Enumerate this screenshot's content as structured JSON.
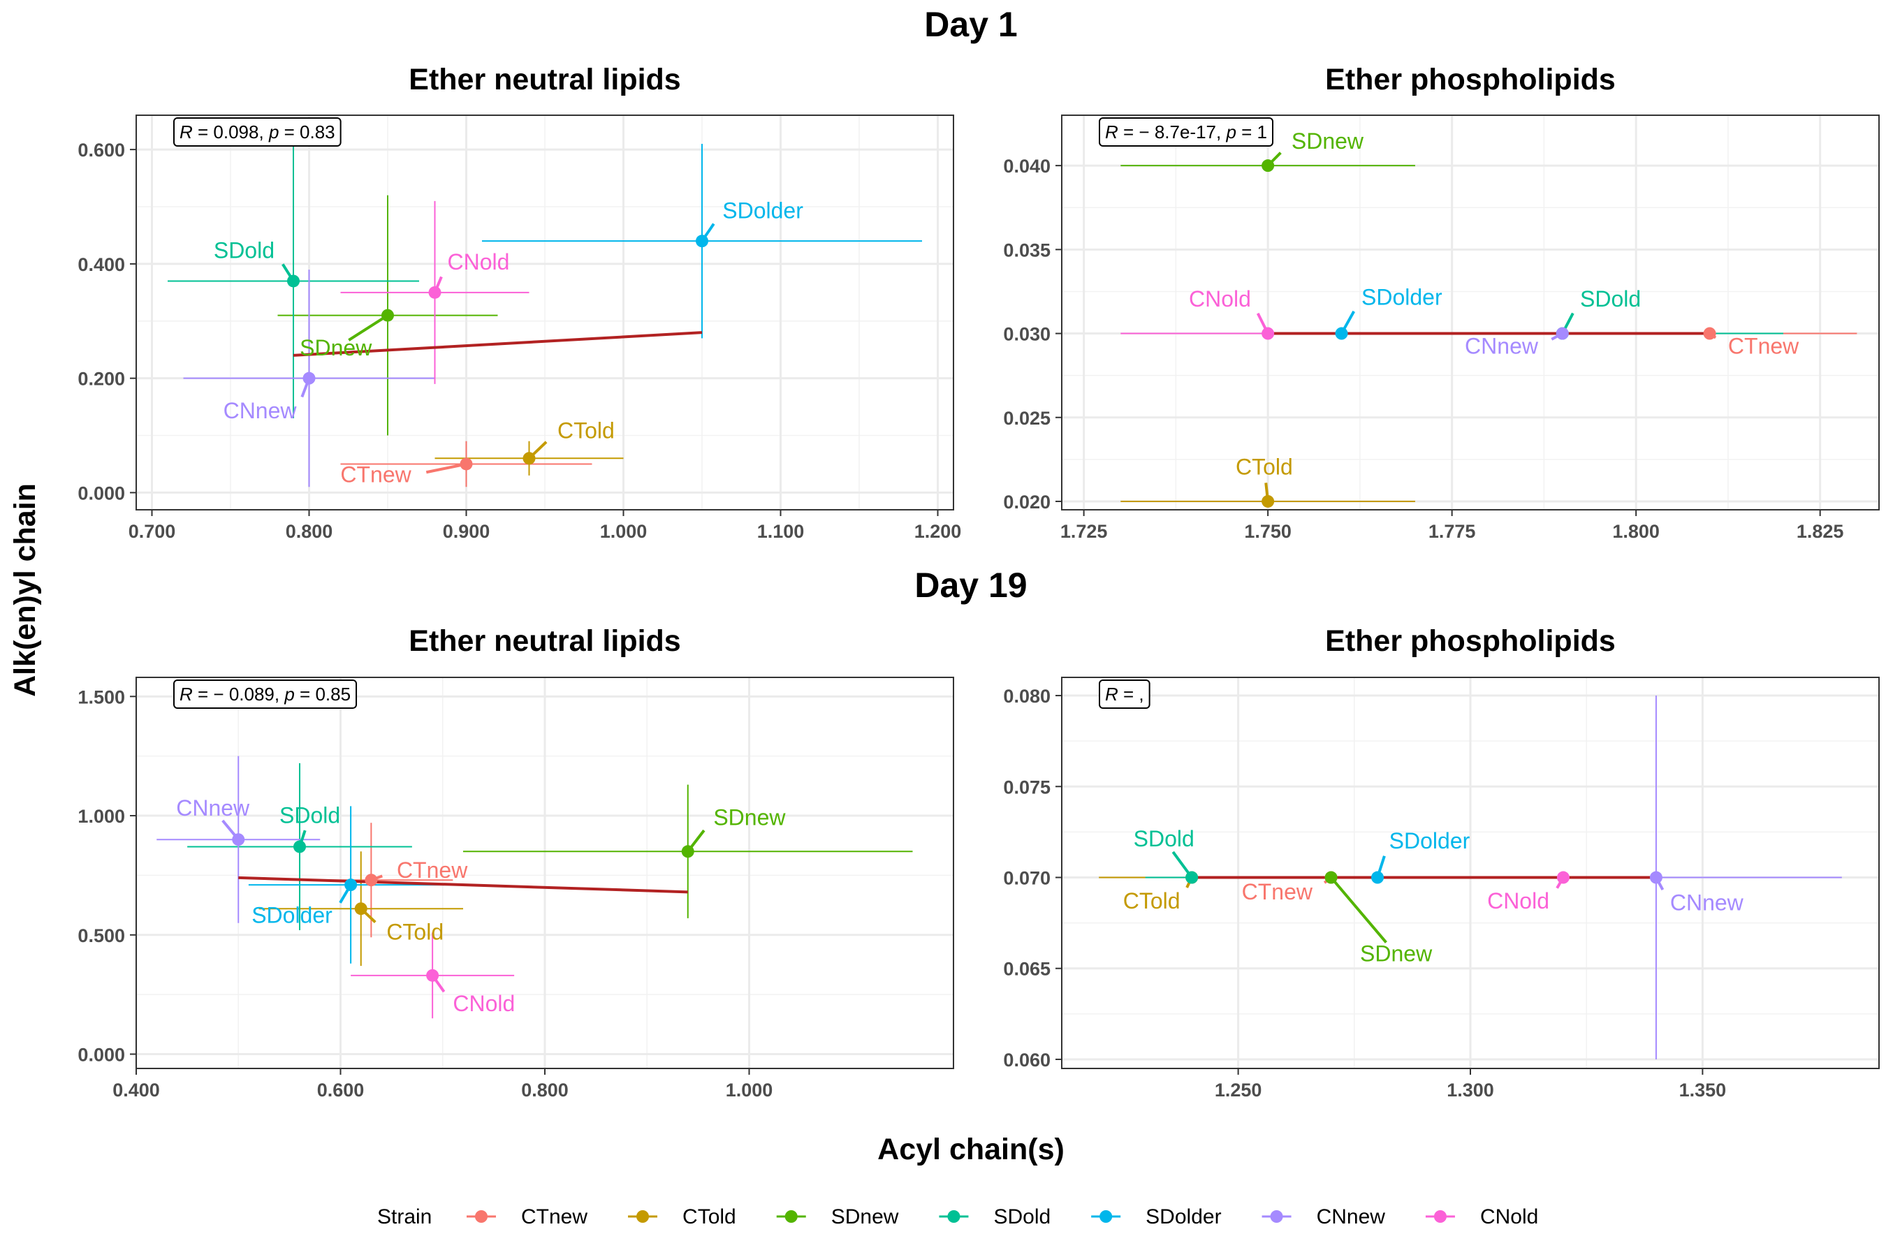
{
  "figure": {
    "x_axis_label": "Acyl chain(s)",
    "y_axis_label": "Alk(en)yl chain"
  },
  "legend": {
    "title": "Strain",
    "placement": "bottom",
    "items": [
      {
        "label": "CTnew",
        "color": "#F8766D"
      },
      {
        "label": "CTold",
        "color": "#C49A00"
      },
      {
        "label": "SDnew",
        "color": "#53B400"
      },
      {
        "label": "SDold",
        "color": "#00C094"
      },
      {
        "label": "SDolder",
        "color": "#00B6EB"
      },
      {
        "label": "CNnew",
        "color": "#A58AFF"
      },
      {
        "label": "CNold",
        "color": "#FB61D7"
      }
    ]
  },
  "colors": {
    "regression_line": "#B22222",
    "grid": "#EBEBEB",
    "panel_border": "#333333"
  },
  "chart_data": [
    {
      "type": "scatter",
      "day": "Day 1",
      "title": "Ether neutral lipids",
      "annotation": {
        "r_label": "R",
        "r_value": " = 0.098, ",
        "p_label": "p",
        "p_value": " = 0.83"
      },
      "xlim": [
        0.69,
        1.21
      ],
      "ylim": [
        -0.03,
        0.66
      ],
      "x_ticks": [
        0.7,
        0.8,
        0.9,
        1.0,
        1.1,
        1.2
      ],
      "x_tick_labels": [
        "0.700",
        "0.800",
        "0.900",
        "1.000",
        "1.100",
        "1.200"
      ],
      "y_ticks": [
        0.0,
        0.2,
        0.4,
        0.6
      ],
      "y_tick_labels": [
        "0.000",
        "0.200",
        "0.400",
        "0.600"
      ],
      "grid": true,
      "regression": {
        "x": [
          0.79,
          1.05
        ],
        "y": [
          0.24,
          0.28
        ]
      },
      "points": [
        {
          "strain": "CTnew",
          "x": 0.9,
          "y": 0.05,
          "xerr": [
            0.82,
            0.98
          ],
          "yerr": [
            0.01,
            0.09
          ],
          "label_x": 0.865,
          "label_y": 0.018,
          "anchor": "end"
        },
        {
          "strain": "CTold",
          "x": 0.94,
          "y": 0.06,
          "xerr": [
            0.88,
            1.0
          ],
          "yerr": [
            0.03,
            0.09
          ],
          "label_x": 0.958,
          "label_y": 0.095,
          "anchor": "start"
        },
        {
          "strain": "SDnew",
          "x": 0.85,
          "y": 0.31,
          "xerr": [
            0.78,
            0.92
          ],
          "yerr": [
            0.1,
            0.52
          ],
          "label_x": 0.817,
          "label_y": 0.24,
          "anchor": "middle"
        },
        {
          "strain": "SDold",
          "x": 0.79,
          "y": 0.37,
          "xerr": [
            0.71,
            0.87
          ],
          "yerr": [
            0.13,
            0.61
          ],
          "label_x": 0.778,
          "label_y": 0.41,
          "anchor": "end"
        },
        {
          "strain": "SDolder",
          "x": 1.05,
          "y": 0.44,
          "xerr": [
            0.91,
            1.19
          ],
          "yerr": [
            0.27,
            0.61
          ],
          "label_x": 1.063,
          "label_y": 0.48,
          "anchor": "start"
        },
        {
          "strain": "CNnew",
          "x": 0.8,
          "y": 0.2,
          "xerr": [
            0.72,
            0.88
          ],
          "yerr": [
            0.01,
            0.39
          ],
          "label_x": 0.792,
          "label_y": 0.13,
          "anchor": "end"
        },
        {
          "strain": "CNold",
          "x": 0.88,
          "y": 0.35,
          "xerr": [
            0.82,
            0.94
          ],
          "yerr": [
            0.19,
            0.51
          ],
          "label_x": 0.888,
          "label_y": 0.39,
          "anchor": "start"
        }
      ]
    },
    {
      "type": "scatter",
      "day": "Day 1",
      "title": "Ether phospholipids",
      "annotation": {
        "r_label": "R",
        "r_value": " = − 8.7e-17, ",
        "p_label": "p",
        "p_value": " = 1"
      },
      "xlim": [
        1.722,
        1.833
      ],
      "ylim": [
        0.0195,
        0.043
      ],
      "x_ticks": [
        1.725,
        1.75,
        1.775,
        1.8,
        1.825
      ],
      "x_tick_labels": [
        "1.725",
        "1.750",
        "1.775",
        "1.800",
        "1.825"
      ],
      "y_ticks": [
        0.02,
        0.025,
        0.03,
        0.035,
        0.04
      ],
      "y_tick_labels": [
        "0.020",
        "0.025",
        "0.030",
        "0.035",
        "0.040"
      ],
      "grid": true,
      "regression": {
        "x": [
          1.75,
          1.81
        ],
        "y": [
          0.03,
          0.03
        ]
      },
      "points": [
        {
          "strain": "CTnew",
          "x": 1.81,
          "y": 0.03,
          "xerr": [
            1.79,
            1.83
          ],
          "yerr": null,
          "label_x": 1.8125,
          "label_y": 0.0288,
          "anchor": "start"
        },
        {
          "strain": "CTold",
          "x": 1.75,
          "y": 0.02,
          "xerr": [
            1.73,
            1.77
          ],
          "yerr": null,
          "label_x": 1.7495,
          "label_y": 0.0216,
          "anchor": "middle"
        },
        {
          "strain": "SDnew",
          "x": 1.75,
          "y": 0.04,
          "xerr": [
            1.73,
            1.77
          ],
          "yerr": null,
          "label_x": 1.7532,
          "label_y": 0.041,
          "anchor": "start"
        },
        {
          "strain": "SDold",
          "x": 1.79,
          "y": 0.03,
          "xerr": [
            1.77,
            1.82
          ],
          "yerr": null,
          "label_x": 1.7924,
          "label_y": 0.0316,
          "anchor": "start"
        },
        {
          "strain": "SDolder",
          "x": 1.76,
          "y": 0.03,
          "xerr": null,
          "yerr": null,
          "label_x": 1.7627,
          "label_y": 0.0317,
          "anchor": "start"
        },
        {
          "strain": "CNnew",
          "x": 1.79,
          "y": 0.03,
          "xerr": [
            1.77,
            1.81
          ],
          "yerr": null,
          "label_x": 1.7867,
          "label_y": 0.0288,
          "anchor": "end"
        },
        {
          "strain": "CNold",
          "x": 1.75,
          "y": 0.03,
          "xerr": [
            1.73,
            1.77
          ],
          "yerr": null,
          "label_x": 1.7477,
          "label_y": 0.0316,
          "anchor": "end"
        }
      ]
    },
    {
      "type": "scatter",
      "day": "Day 19",
      "title": "Ether neutral lipids",
      "annotation": {
        "r_label": "R",
        "r_value": " = − 0.089, ",
        "p_label": "p",
        "p_value": " = 0.85"
      },
      "xlim": [
        0.4,
        1.2
      ],
      "ylim": [
        -0.06,
        1.58
      ],
      "x_ticks": [
        0.4,
        0.6,
        0.8,
        1.0
      ],
      "x_tick_labels": [
        "0.400",
        "0.600",
        "0.800",
        "1.000"
      ],
      "y_ticks": [
        0.0,
        0.5,
        1.0,
        1.5
      ],
      "y_tick_labels": [
        "0.000",
        "0.500",
        "1.000",
        "1.500"
      ],
      "grid": true,
      "regression": {
        "x": [
          0.5,
          0.94
        ],
        "y": [
          0.74,
          0.68
        ]
      },
      "points": [
        {
          "strain": "CTnew",
          "x": 0.63,
          "y": 0.73,
          "xerr": [
            0.55,
            0.71
          ],
          "yerr": [
            0.49,
            0.97
          ],
          "label_x": 0.655,
          "label_y": 0.74,
          "anchor": "start"
        },
        {
          "strain": "CTold",
          "x": 0.62,
          "y": 0.61,
          "xerr": [
            0.52,
            0.72
          ],
          "yerr": [
            0.37,
            0.85
          ],
          "label_x": 0.645,
          "label_y": 0.48,
          "anchor": "start"
        },
        {
          "strain": "SDnew",
          "x": 0.94,
          "y": 0.85,
          "xerr": [
            0.72,
            1.16
          ],
          "yerr": [
            0.57,
            1.13
          ],
          "label_x": 0.965,
          "label_y": 0.96,
          "anchor": "start"
        },
        {
          "strain": "SDold",
          "x": 0.56,
          "y": 0.87,
          "xerr": [
            0.45,
            0.67
          ],
          "yerr": [
            0.52,
            1.22
          ],
          "label_x": 0.57,
          "label_y": 0.97,
          "anchor": "middle"
        },
        {
          "strain": "SDolder",
          "x": 0.61,
          "y": 0.71,
          "xerr": [
            0.51,
            0.71
          ],
          "yerr": [
            0.38,
            1.04
          ],
          "label_x": 0.592,
          "label_y": 0.55,
          "anchor": "end"
        },
        {
          "strain": "CNnew",
          "x": 0.5,
          "y": 0.9,
          "xerr": [
            0.42,
            0.58
          ],
          "yerr": [
            0.55,
            1.25
          ],
          "label_x": 0.475,
          "label_y": 1.0,
          "anchor": "middle"
        },
        {
          "strain": "CNold",
          "x": 0.69,
          "y": 0.33,
          "xerr": [
            0.61,
            0.77
          ],
          "yerr": [
            0.15,
            0.51
          ],
          "label_x": 0.71,
          "label_y": 0.18,
          "anchor": "start"
        }
      ]
    },
    {
      "type": "scatter",
      "day": "Day 19",
      "title": "Ether phospholipids",
      "annotation": {
        "r_label": "R",
        "r_value": " = ,",
        "p_label": "",
        "p_value": ""
      },
      "xlim": [
        1.212,
        1.388
      ],
      "ylim": [
        0.0595,
        0.081
      ],
      "x_ticks": [
        1.25,
        1.3,
        1.35
      ],
      "x_tick_labels": [
        "1.250",
        "1.300",
        "1.350"
      ],
      "y_ticks": [
        0.06,
        0.065,
        0.07,
        0.075,
        0.08
      ],
      "y_tick_labels": [
        "0.060",
        "0.065",
        "0.070",
        "0.075",
        "0.080"
      ],
      "grid": true,
      "regression": {
        "x": [
          1.24,
          1.34
        ],
        "y": [
          0.07,
          0.07
        ]
      },
      "points": [
        {
          "strain": "CTnew",
          "x": 1.27,
          "y": 0.07,
          "xerr": [
            1.25,
            1.29
          ],
          "yerr": null,
          "label_x": 1.266,
          "label_y": 0.0688,
          "anchor": "end"
        },
        {
          "strain": "CTold",
          "x": 1.24,
          "y": 0.07,
          "xerr": [
            1.22,
            1.26
          ],
          "yerr": null,
          "label_x": 1.2375,
          "label_y": 0.0683,
          "anchor": "end"
        },
        {
          "strain": "SDnew",
          "x": 1.27,
          "y": 0.07,
          "xerr": [
            1.25,
            1.29
          ],
          "yerr": null,
          "label_x": 1.284,
          "label_y": 0.0654,
          "anchor": "middle"
        },
        {
          "strain": "SDold",
          "x": 1.24,
          "y": 0.07,
          "xerr": [
            1.23,
            1.25
          ],
          "yerr": null,
          "label_x": 1.234,
          "label_y": 0.0717,
          "anchor": "middle"
        },
        {
          "strain": "SDolder",
          "x": 1.28,
          "y": 0.07,
          "xerr": null,
          "yerr": null,
          "label_x": 1.2825,
          "label_y": 0.0716,
          "anchor": "start"
        },
        {
          "strain": "CNnew",
          "x": 1.34,
          "y": 0.07,
          "xerr": [
            1.3,
            1.38
          ],
          "yerr": [
            0.06,
            0.08
          ],
          "label_x": 1.343,
          "label_y": 0.0682,
          "anchor": "start"
        },
        {
          "strain": "CNold",
          "x": 1.32,
          "y": 0.07,
          "xerr": [
            1.3,
            1.34
          ],
          "yerr": null,
          "label_x": 1.317,
          "label_y": 0.0683,
          "anchor": "end"
        }
      ]
    }
  ]
}
